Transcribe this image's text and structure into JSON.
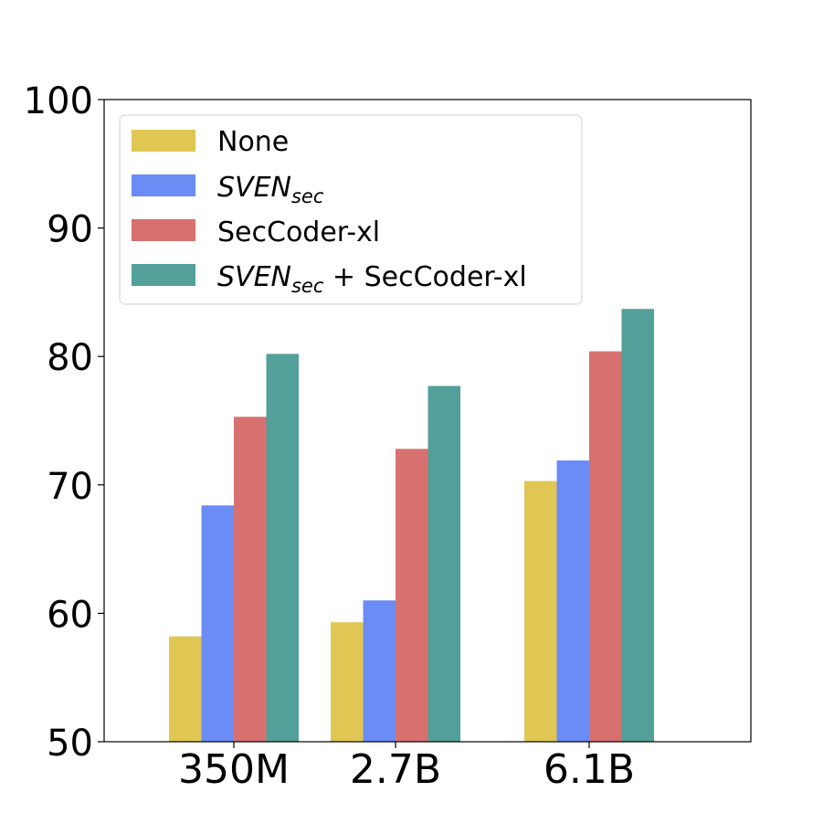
{
  "chart_data": {
    "type": "bar",
    "categories": [
      "350M",
      "2.7B",
      "6.1B"
    ],
    "series": [
      {
        "name": "None",
        "values": [
          58.2,
          59.3,
          70.3
        ],
        "color": "#e0c652"
      },
      {
        "name": "SVEN_sec",
        "name_main": "SVEN",
        "name_sub": "sec",
        "values": [
          68.4,
          61.0,
          71.9
        ],
        "color": "#6b8bf5"
      },
      {
        "name": "SecCoder-xl",
        "values": [
          75.3,
          72.8,
          80.4
        ],
        "color": "#d77170"
      },
      {
        "name": "SVEN_sec + SecCoder-xl",
        "name_main": "SVEN",
        "name_sub": "sec",
        "name_rest": " + SecCoder-xl",
        "values": [
          80.2,
          77.7,
          83.7
        ],
        "color": "#539f99"
      }
    ],
    "ylim": [
      50,
      100
    ],
    "yticks": [
      50,
      60,
      70,
      80,
      90,
      100
    ],
    "xlabel": "",
    "ylabel": "",
    "title": "",
    "grid": false,
    "legend_position": "top-left"
  }
}
